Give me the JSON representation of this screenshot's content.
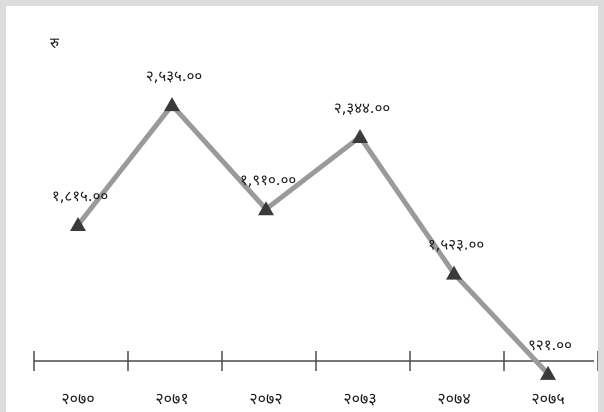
{
  "chart_data": {
    "type": "line",
    "title": "",
    "ylabel": "रु",
    "xlabel": "",
    "categories": [
      "२०७०",
      "२०७१",
      "२०७२",
      "२०७३",
      "२०७४",
      "२०७५"
    ],
    "values": [
      1815,
      2535,
      1910,
      2344,
      1523,
      921
    ],
    "data_labels": [
      "१,८१५.००",
      "२,५३५.००",
      "१,९१०.००",
      "२,३४४.००",
      "१,५२३.००",
      "९२१.००"
    ],
    "marker": "triangle",
    "line_color": "#9a9a9a",
    "marker_color": "#3a3a3a",
    "ylim": [
      800,
      2650
    ],
    "grid": false,
    "legend": "none"
  }
}
